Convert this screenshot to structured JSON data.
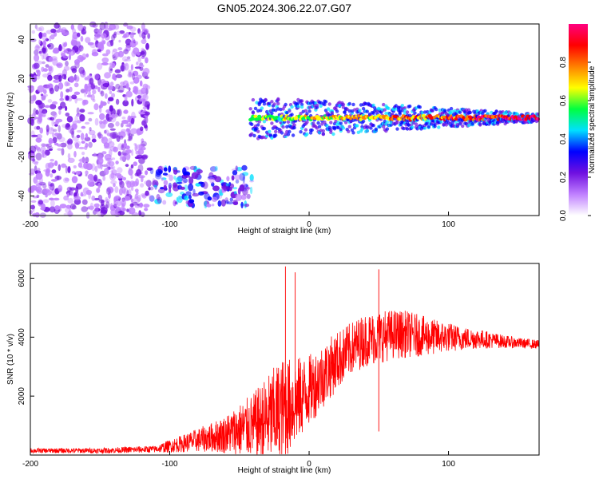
{
  "title": "GN05.2024.306.22.07.G07",
  "chart_data": [
    {
      "type": "heatmap",
      "xlabel": "Height of straight line (km)",
      "ylabel": "Frequency (Hz)",
      "xlim": [
        -200,
        165
      ],
      "ylim": [
        -50,
        48
      ],
      "xticks": [
        -200,
        -100,
        0,
        100
      ],
      "yticks": [
        -40,
        -20,
        0,
        20,
        40
      ],
      "colorbar": {
        "label": "Normalized spectral amplitude",
        "range": [
          0,
          1
        ],
        "ticks": [
          0.0,
          0.2,
          0.4,
          0.6,
          0.8
        ],
        "colors": [
          "#ffffff",
          "#c080ff",
          "#7010e0",
          "#0000ff",
          "#00e0ff",
          "#00ff40",
          "#ffff00",
          "#ff8000",
          "#ff0000",
          "#ff0080"
        ]
      },
      "regions": [
        {
          "x_range": [
            -200,
            -115
          ],
          "freq_range": [
            -50,
            48
          ],
          "amplitude": "low",
          "pattern": "scattered noise"
        },
        {
          "x_range": [
            -115,
            -40
          ],
          "freq_range": [
            -45,
            -25
          ],
          "amplitude": "low-medium",
          "pattern": "cluster near -35 Hz"
        },
        {
          "x_range": [
            -42,
            165
          ],
          "freq_center": 0,
          "amplitude": "medium-high",
          "pattern": "signal line near 0 Hz"
        }
      ]
    },
    {
      "type": "line",
      "xlabel": "Height of straight line (km)",
      "ylabel": "SNR (10 * v/v)",
      "xlim": [
        -200,
        165
      ],
      "ylim": [
        0,
        6500
      ],
      "xticks": [
        -200,
        -100,
        0,
        100
      ],
      "yticks": [
        2000,
        4000,
        6000
      ],
      "color": "#ff0000",
      "envelope": {
        "x": [
          -200,
          -150,
          -110,
          -100,
          -90,
          -80,
          -70,
          -60,
          -50,
          -40,
          -30,
          -20,
          -10,
          0,
          10,
          20,
          30,
          40,
          50,
          60,
          70,
          80,
          90,
          100,
          110,
          120,
          130,
          140,
          150,
          165
        ],
        "mean": [
          150,
          150,
          200,
          300,
          400,
          500,
          600,
          700,
          850,
          1000,
          1200,
          1500,
          1800,
          2200,
          2700,
          3200,
          3600,
          3900,
          4000,
          4100,
          4100,
          4050,
          4000,
          4000,
          3950,
          3950,
          3900,
          3850,
          3800,
          3750
        ],
        "spread": [
          80,
          90,
          120,
          220,
          300,
          400,
          500,
          650,
          900,
          1100,
          1500,
          1800,
          1500,
          1200,
          1100,
          1000,
          900,
          900,
          900,
          850,
          800,
          700,
          600,
          500,
          400,
          350,
          280,
          220,
          180,
          150
        ]
      },
      "spikes": [
        {
          "x": -17,
          "y": 6400
        },
        {
          "x": -10,
          "y": 6200
        },
        {
          "x": 50,
          "y": 6300
        },
        {
          "x": 50,
          "y": 800
        }
      ]
    }
  ]
}
